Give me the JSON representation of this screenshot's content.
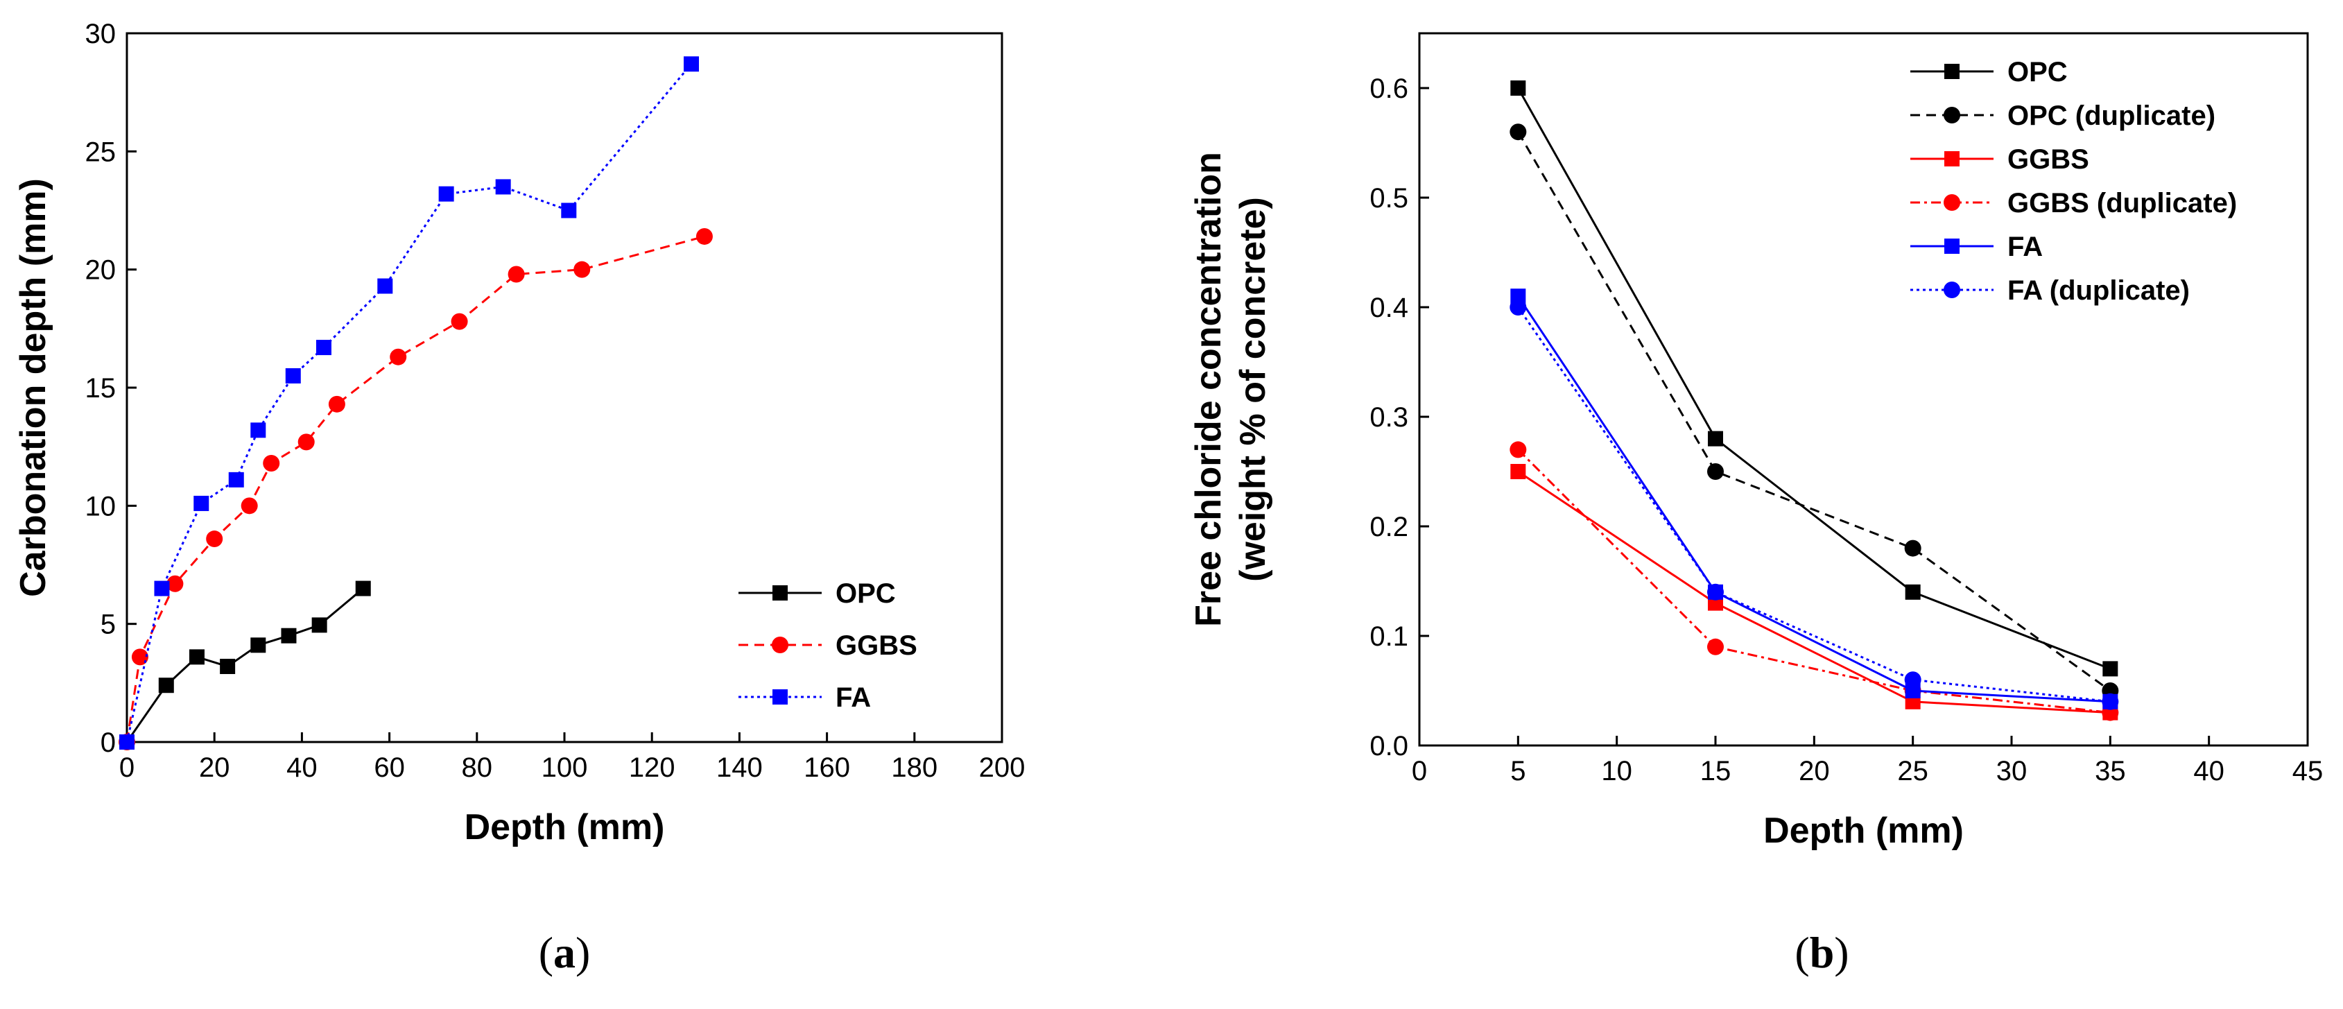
{
  "chart_data": [
    {
      "type": "line",
      "caption": "a",
      "xlabel": "Depth (mm)",
      "ylabel": "Carbonation depth (mm)",
      "xlim": [
        0,
        200
      ],
      "ylim": [
        0,
        30
      ],
      "xticks": [
        0,
        20,
        40,
        60,
        80,
        100,
        120,
        140,
        160,
        180,
        200
      ],
      "yticks": [
        0,
        5,
        10,
        15,
        20,
        25,
        30
      ],
      "legend_position": "bottom-right",
      "series": [
        {
          "name": "OPC",
          "color": "#000000",
          "marker": "square",
          "dash": "solid",
          "points": [
            [
              0,
              0
            ],
            [
              9,
              2.4
            ],
            [
              16,
              3.6
            ],
            [
              23,
              3.2
            ],
            [
              30,
              4.1
            ],
            [
              37,
              4.5
            ],
            [
              44,
              4.95
            ],
            [
              54,
              6.5
            ]
          ]
        },
        {
          "name": "GGBS",
          "color": "#ff0000",
          "marker": "circle",
          "dash": "dashed",
          "points": [
            [
              0,
              0
            ],
            [
              3,
              3.6
            ],
            [
              11,
              6.7
            ],
            [
              20,
              8.6
            ],
            [
              28,
              10.0
            ],
            [
              33,
              11.8
            ],
            [
              41,
              12.7
            ],
            [
              48,
              14.3
            ],
            [
              62,
              16.3
            ],
            [
              76,
              17.8
            ],
            [
              89,
              19.8
            ],
            [
              104,
              20.0
            ],
            [
              132,
              21.4
            ]
          ]
        },
        {
          "name": "FA",
          "color": "#0000ff",
          "marker": "square",
          "dash": "dotted",
          "points": [
            [
              0,
              0
            ],
            [
              8,
              6.5
            ],
            [
              17,
              10.1
            ],
            [
              25,
              11.1
            ],
            [
              30,
              13.2
            ],
            [
              38,
              15.5
            ],
            [
              45,
              16.7
            ],
            [
              59,
              19.3
            ],
            [
              73,
              23.2
            ],
            [
              86,
              23.5
            ],
            [
              101,
              22.5
            ],
            [
              129,
              28.7
            ]
          ]
        }
      ]
    },
    {
      "type": "line",
      "caption": "b",
      "xlabel": "Depth (mm)",
      "ylabel": [
        "Free chloride concentration",
        "(weight % of concrete)"
      ],
      "xlim": [
        0,
        45
      ],
      "ylim": [
        0,
        0.65
      ],
      "xticks": [
        0,
        5,
        10,
        15,
        20,
        25,
        30,
        35,
        40,
        45
      ],
      "yticks": [
        "0.0",
        "0.1",
        "0.2",
        "0.3",
        "0.4",
        "0.5",
        "0.6"
      ],
      "legend_position": "top-right",
      "series": [
        {
          "name": "OPC",
          "color": "#000000",
          "marker": "square",
          "dash": "solid",
          "points": [
            [
              5,
              0.6
            ],
            [
              15,
              0.28
            ],
            [
              25,
              0.14
            ],
            [
              35,
              0.07
            ]
          ]
        },
        {
          "name": "OPC (duplicate)",
          "color": "#000000",
          "marker": "circle",
          "dash": "dashed",
          "points": [
            [
              5,
              0.56
            ],
            [
              15,
              0.25
            ],
            [
              25,
              0.18
            ],
            [
              35,
              0.05
            ]
          ]
        },
        {
          "name": "GGBS",
          "color": "#ff0000",
          "marker": "square",
          "dash": "solid",
          "points": [
            [
              5,
              0.25
            ],
            [
              15,
              0.13
            ],
            [
              25,
              0.04
            ],
            [
              35,
              0.03
            ]
          ]
        },
        {
          "name": "GGBS (duplicate)",
          "color": "#ff0000",
          "marker": "circle",
          "dash": "dashdot",
          "points": [
            [
              5,
              0.27
            ],
            [
              15,
              0.09
            ],
            [
              25,
              0.05
            ],
            [
              35,
              0.03
            ]
          ]
        },
        {
          "name": "FA",
          "color": "#0000ff",
          "marker": "square",
          "dash": "solid",
          "points": [
            [
              5,
              0.41
            ],
            [
              15,
              0.14
            ],
            [
              25,
              0.05
            ],
            [
              35,
              0.04
            ]
          ]
        },
        {
          "name": "FA (duplicate)",
          "color": "#0000ff",
          "marker": "circle",
          "dash": "dotted",
          "points": [
            [
              5,
              0.4
            ],
            [
              15,
              0.14
            ],
            [
              25,
              0.06
            ],
            [
              35,
              0.04
            ]
          ]
        }
      ]
    }
  ]
}
